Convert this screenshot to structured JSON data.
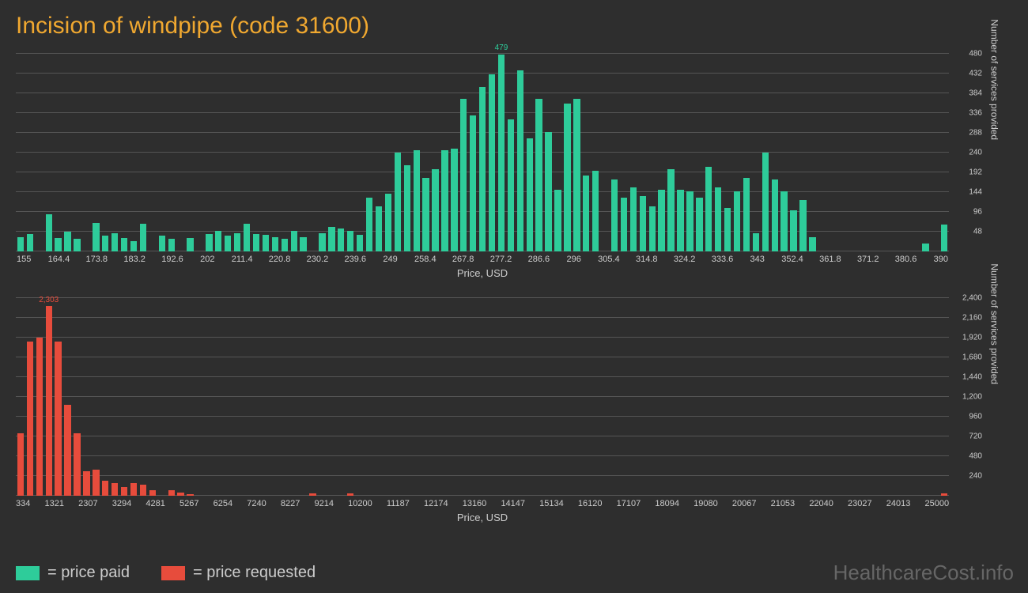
{
  "title": "Incision of windpipe (code 31600)",
  "watermark": "HealthcareCost.info",
  "legend": {
    "paid": {
      "label": "= price paid",
      "color": "#2ecc9a"
    },
    "requested": {
      "label": "= price requested",
      "color": "#e74c3c"
    }
  },
  "chart_top": {
    "type": "histogram",
    "bar_color": "#2ecc9a",
    "background": "#2e2e2e",
    "grid_color": "#555555",
    "x_label": "Price, USD",
    "y_label": "Number of services provided",
    "label_color": "#cccccc",
    "label_fontsize": 12,
    "tick_fontsize": 11,
    "peak_value": 479,
    "peak_label": "479",
    "peak_label_color": "#2ecc9a",
    "ylim": [
      0,
      480
    ],
    "y_ticks": [
      48,
      96,
      144,
      192,
      240,
      288,
      336,
      384,
      432,
      480
    ],
    "x_ticks": [
      "155",
      "",
      "164.4",
      "",
      "173.8",
      "",
      "183.2",
      "",
      "192.6",
      "",
      "202",
      "",
      "211.4",
      "",
      "220.8",
      "",
      "230.2",
      "",
      "239.6",
      "",
      "249",
      "",
      "258.4",
      "",
      "267.8",
      "",
      "277.2",
      "",
      "286.6",
      "",
      "296",
      "",
      "305.4",
      "",
      "314.8",
      "",
      "324.2",
      "",
      "333.6",
      "",
      "343",
      "",
      "352.4",
      "",
      "361.8",
      "",
      "371.2",
      "",
      "380.6",
      "",
      "390"
    ],
    "values": [
      35,
      42,
      0,
      90,
      32,
      48,
      30,
      0,
      70,
      38,
      45,
      32,
      25,
      68,
      0,
      38,
      30,
      0,
      32,
      0,
      42,
      50,
      38,
      45,
      68,
      42,
      40,
      35,
      30,
      50,
      35,
      0,
      45,
      60,
      55,
      50,
      40,
      130,
      110,
      140,
      240,
      210,
      245,
      178,
      200,
      245,
      250,
      370,
      330,
      400,
      430,
      479,
      320,
      440,
      275,
      370,
      290,
      150,
      360,
      370,
      185,
      195,
      0,
      175,
      130,
      155,
      135,
      110,
      150,
      200,
      150,
      145,
      130,
      205,
      155,
      105,
      145,
      178,
      45,
      240,
      175,
      145,
      100,
      125,
      35,
      0,
      0,
      0,
      0,
      0,
      0,
      0,
      0,
      0,
      0,
      0,
      20,
      0,
      65
    ]
  },
  "chart_bottom": {
    "type": "histogram",
    "bar_color": "#e74c3c",
    "background": "#2e2e2e",
    "grid_color": "#555555",
    "x_label": "Price, USD",
    "y_label": "Number of services provided",
    "label_color": "#cccccc",
    "label_fontsize": 12,
    "tick_fontsize": 11,
    "peak_value": 2303,
    "peak_label": "2,303",
    "peak_label_color": "#e74c3c",
    "ylim": [
      0,
      2400
    ],
    "y_ticks": [
      240,
      480,
      720,
      960,
      1200,
      1440,
      1680,
      1920,
      2160,
      2400
    ],
    "x_ticks": [
      "334",
      "",
      "1321",
      "",
      "2307",
      "",
      "3294",
      "",
      "4281",
      "",
      "5267",
      "",
      "6254",
      "",
      "7240",
      "",
      "8227",
      "",
      "9214",
      "",
      "10200",
      "",
      "11187",
      "",
      "12174",
      "",
      "13160",
      "",
      "14147",
      "",
      "15134",
      "",
      "16120",
      "",
      "17107",
      "",
      "18094",
      "",
      "19080",
      "",
      "20067",
      "",
      "21053",
      "",
      "22040",
      "",
      "23027",
      "",
      "24013",
      "",
      "25000"
    ],
    "values": [
      760,
      1870,
      1920,
      2303,
      1870,
      1100,
      760,
      300,
      320,
      180,
      150,
      110,
      150,
      130,
      65,
      0,
      70,
      35,
      20,
      0,
      0,
      0,
      0,
      0,
      0,
      0,
      0,
      0,
      0,
      0,
      0,
      25,
      0,
      0,
      0,
      25,
      0,
      0,
      0,
      0,
      0,
      0,
      0,
      0,
      0,
      0,
      0,
      0,
      0,
      0,
      0,
      0,
      0,
      0,
      0,
      0,
      0,
      0,
      0,
      0,
      0,
      0,
      0,
      0,
      0,
      0,
      0,
      0,
      0,
      0,
      0,
      0,
      0,
      0,
      0,
      0,
      0,
      0,
      0,
      0,
      0,
      0,
      0,
      0,
      0,
      0,
      0,
      0,
      0,
      0,
      0,
      0,
      0,
      0,
      0,
      0,
      0,
      0,
      25
    ]
  }
}
